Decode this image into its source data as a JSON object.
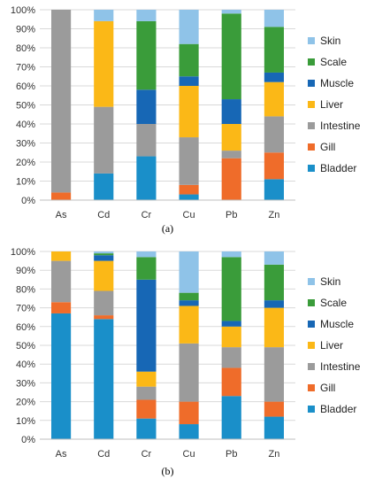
{
  "colors": {
    "Bladder": "#1a8fc9",
    "Gill": "#ef6c2a",
    "Intestine": "#9b9b9b",
    "Liver": "#fbb817",
    "Muscle": "#1767b5",
    "Scale": "#3a9c3a",
    "Skin": "#8fc3e8"
  },
  "chart_data": [
    {
      "type": "bar",
      "stacked": true,
      "panel_label": "(a)",
      "categories": [
        "As",
        "Cd",
        "Cr",
        "Cu",
        "Pb",
        "Zn"
      ],
      "ylim": [
        0,
        100
      ],
      "yticks": [
        "0%",
        "10%",
        "20%",
        "30%",
        "40%",
        "50%",
        "60%",
        "70%",
        "80%",
        "90%",
        "100%"
      ],
      "legend": [
        "Skin",
        "Scale",
        "Muscle",
        "Liver",
        "Intestine",
        "Gill",
        "Bladder"
      ],
      "legend_position": "right",
      "series": [
        {
          "name": "Bladder",
          "values": [
            0,
            14,
            23,
            3,
            0,
            11
          ]
        },
        {
          "name": "Gill",
          "values": [
            4,
            0,
            0,
            5,
            22,
            14
          ]
        },
        {
          "name": "Intestine",
          "values": [
            96,
            35,
            17,
            25,
            4,
            19
          ]
        },
        {
          "name": "Liver",
          "values": [
            0,
            45,
            0,
            27,
            14,
            18
          ]
        },
        {
          "name": "Muscle",
          "values": [
            0,
            0,
            18,
            5,
            13,
            5
          ]
        },
        {
          "name": "Scale",
          "values": [
            0,
            0,
            36,
            17,
            45,
            24
          ]
        },
        {
          "name": "Skin",
          "values": [
            0,
            6,
            6,
            18,
            2,
            9
          ]
        }
      ]
    },
    {
      "type": "bar",
      "stacked": true,
      "panel_label": "(b)",
      "categories": [
        "As",
        "Cd",
        "Cr",
        "Cu",
        "Pb",
        "Zn"
      ],
      "ylim": [
        0,
        100
      ],
      "yticks": [
        "0%",
        "10%",
        "20%",
        "30%",
        "40%",
        "50%",
        "60%",
        "70%",
        "80%",
        "90%",
        "100%"
      ],
      "legend": [
        "Skin",
        "Scale",
        "Muscle",
        "Liver",
        "Intestine",
        "Gill",
        "Bladder"
      ],
      "legend_position": "right",
      "series": [
        {
          "name": "Bladder",
          "values": [
            67,
            64,
            11,
            8,
            23,
            12
          ]
        },
        {
          "name": "Gill",
          "values": [
            6,
            2,
            10,
            12,
            15,
            8
          ]
        },
        {
          "name": "Intestine",
          "values": [
            22,
            13,
            7,
            31,
            11,
            29
          ]
        },
        {
          "name": "Liver",
          "values": [
            5,
            16,
            8,
            20,
            11,
            21
          ]
        },
        {
          "name": "Muscle",
          "values": [
            0,
            3,
            49,
            3,
            3,
            4
          ]
        },
        {
          "name": "Scale",
          "values": [
            0,
            1,
            12,
            4,
            34,
            19
          ]
        },
        {
          "name": "Skin",
          "values": [
            0,
            1,
            3,
            22,
            3,
            7
          ]
        }
      ]
    }
  ]
}
